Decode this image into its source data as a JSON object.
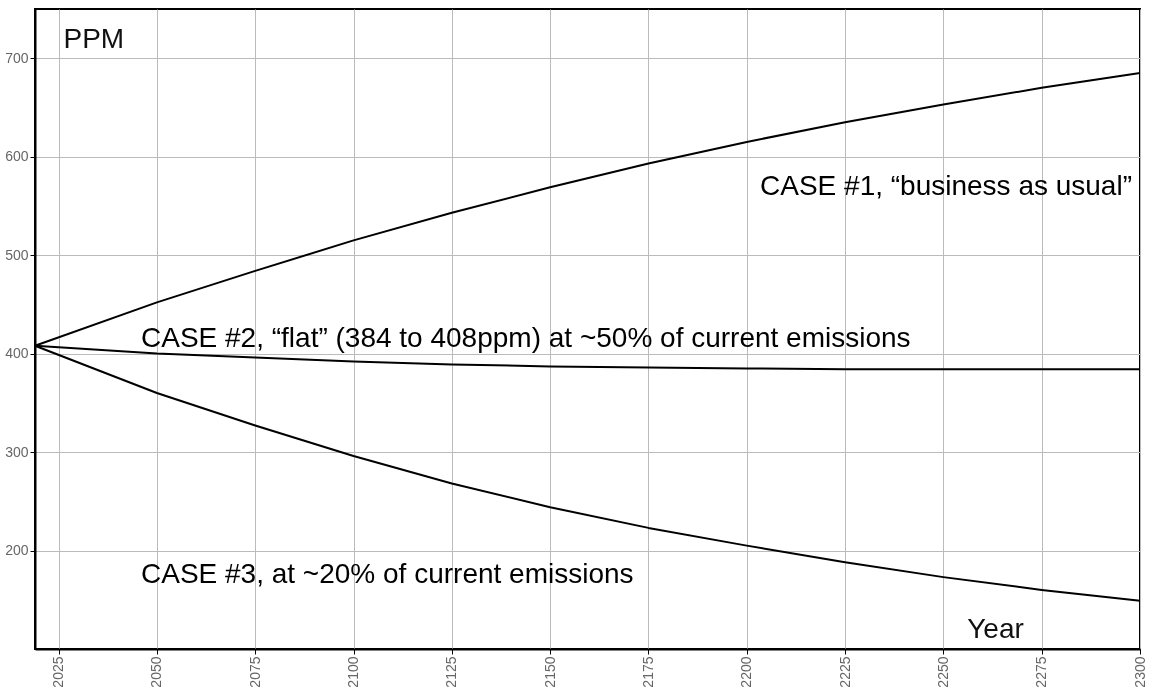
{
  "chart_data": {
    "type": "line",
    "xlabel": "Year",
    "ylabel": "PPM",
    "xlim": [
      2019,
      2300
    ],
    "ylim": [
      100,
      750
    ],
    "xticks": [
      2025,
      2050,
      2075,
      2100,
      2125,
      2150,
      2175,
      2200,
      2225,
      2250,
      2275,
      2300
    ],
    "yticks": [
      200,
      300,
      400,
      500,
      600,
      700
    ],
    "grid": true,
    "legend": false,
    "line_style": "solid",
    "marker": "none",
    "x": [
      2019,
      2050,
      2075,
      2100,
      2125,
      2150,
      2175,
      2200,
      2225,
      2250,
      2275,
      2300
    ],
    "series": [
      {
        "name": "CASE #1, “business as usual”",
        "color": "#000000",
        "values": [
          408,
          452,
          484,
          515,
          543,
          569,
          593,
          615,
          635,
          653,
          670,
          685
        ]
      },
      {
        "name": "CASE #2, “flat” (384 to 408ppm) at ~50% of current emissions",
        "color": "#000000",
        "values": [
          408,
          400,
          396,
          392,
          389,
          387,
          386,
          385,
          384,
          384,
          384,
          384
        ]
      },
      {
        "name": "CASE #3, at ~20% of current emissions",
        "color": "#000000",
        "values": [
          408,
          360,
          327,
          296,
          268,
          244,
          223,
          205,
          188,
          173,
          160,
          149
        ]
      }
    ]
  }
}
